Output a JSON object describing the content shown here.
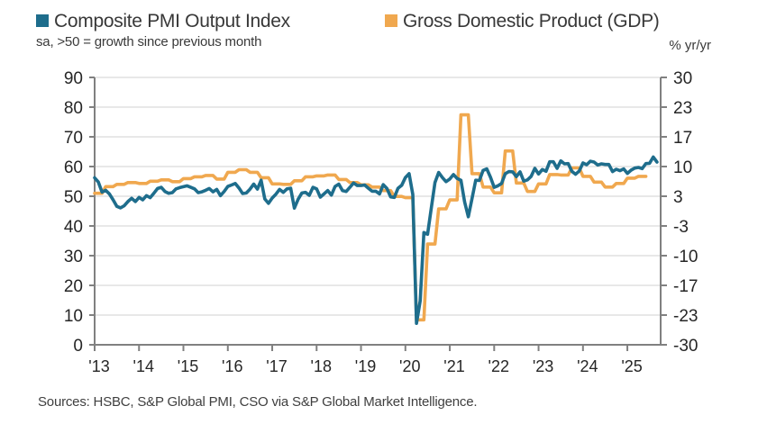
{
  "header": {
    "legend": [
      {
        "label": "Composite PMI Output Index",
        "color": "#1E6D8C"
      },
      {
        "label": "Gross Domestic Product (GDP)",
        "color": "#F0A84F"
      }
    ],
    "subtitle_left": "sa, >50 = growth since previous month",
    "subtitle_right": "% yr/yr"
  },
  "footer": {
    "source": "Sources: HSBC, S&P Global PMI, CSO via S&P Global Market Intelligence."
  },
  "chart_data": {
    "type": "line",
    "title": "",
    "grid": true,
    "legend_position": "top",
    "colors": {
      "grid": "#d9d9d9",
      "axis": "#808080",
      "text": "#262626"
    },
    "x_axis": {
      "start": "2013-01",
      "months_total": 153,
      "tick_months": [
        0,
        12,
        24,
        36,
        48,
        60,
        72,
        84,
        96,
        108,
        120,
        132,
        144
      ],
      "tick_labels": [
        "'13",
        "'14",
        "'15",
        "'16",
        "'17",
        "'18",
        "'19",
        "'20",
        "'21",
        "'22",
        "'23",
        "'24",
        "'25"
      ]
    },
    "left_axis": {
      "label": "Composite PMI Output Index",
      "range": [
        0,
        90
      ],
      "ticks": [
        90,
        80,
        70,
        60,
        50,
        40,
        30,
        20,
        10,
        0
      ]
    },
    "right_axis": {
      "label": "% yr/yr",
      "range": [
        -30,
        30
      ],
      "ticks": [
        "30",
        "23",
        "17",
        "10",
        "3",
        "-3",
        "-10",
        "-17",
        "-23",
        "-30"
      ]
    },
    "series": [
      {
        "name": "Composite PMI Output Index",
        "axis": "left",
        "frequency": "monthly",
        "start": "2013-01",
        "color": "#1E6D8C",
        "values": [
          56.2,
          54.8,
          51.4,
          52.0,
          50.8,
          48.8,
          46.6,
          46.1,
          46.8,
          48.2,
          49.3,
          48.2,
          49.6,
          48.8,
          50.2,
          49.5,
          51.0,
          52.6,
          53.0,
          51.6,
          51.0,
          51.2,
          52.5,
          52.9,
          53.2,
          53.5,
          53.0,
          52.5,
          51.2,
          51.5,
          52.0,
          52.6,
          51.5,
          52.3,
          50.2,
          51.6,
          53.3,
          53.8,
          54.3,
          52.8,
          50.9,
          51.1,
          52.4,
          54.1,
          52.4,
          55.4,
          49.1,
          47.6,
          49.4,
          50.7,
          52.3,
          51.3,
          52.5,
          52.7,
          46.0,
          49.0,
          51.1,
          51.3,
          50.3,
          53.0,
          52.5,
          49.7,
          50.8,
          51.9,
          50.4,
          53.3,
          54.1,
          51.9,
          51.6,
          53.0,
          54.5,
          53.6,
          53.6,
          53.8,
          52.7,
          51.7,
          51.7,
          50.8,
          53.9,
          52.6,
          49.8,
          49.6,
          52.7,
          53.7,
          56.3,
          57.6,
          50.6,
          7.2,
          14.8,
          37.8,
          37.2,
          46.0,
          54.6,
          58.0,
          56.3,
          54.9,
          55.8,
          57.3,
          56.0,
          55.4,
          48.1,
          43.1,
          49.2,
          55.4,
          55.3,
          58.7,
          59.2,
          56.4,
          53.0,
          53.5,
          54.3,
          57.6,
          58.3,
          58.2,
          56.6,
          58.2,
          55.1,
          55.5,
          56.7,
          59.4,
          57.5,
          59.0,
          58.4,
          61.6,
          61.6,
          59.4,
          61.9,
          60.9,
          61.0,
          58.4,
          57.4,
          58.5,
          61.2,
          60.6,
          61.8,
          61.5,
          60.5,
          60.9,
          60.7,
          60.7,
          58.3,
          59.1,
          58.6,
          59.2,
          57.7,
          58.8,
          59.5,
          59.7,
          59.3,
          61.0,
          61.1,
          63.2,
          61.5
        ]
      },
      {
        "name": "Gross Domestic Product (GDP)",
        "axis": "right",
        "frequency": "quarterly",
        "start": "2013-Q1",
        "style": "step",
        "color": "#F0A84F",
        "values": [
          4.0,
          5.5,
          6.0,
          6.4,
          6.2,
          6.7,
          7.0,
          6.6,
          7.3,
          7.7,
          8.0,
          7.2,
          8.7,
          9.3,
          8.7,
          7.5,
          6.1,
          6.0,
          6.8,
          7.7,
          7.9,
          8.1,
          7.1,
          6.4,
          5.9,
          5.4,
          4.6,
          3.3,
          3.0,
          -24.4,
          -7.4,
          0.5,
          2.5,
          21.6,
          8.4,
          5.4,
          4.1,
          13.5,
          6.3,
          4.4,
          6.1,
          8.2,
          8.1,
          9.7,
          7.8,
          6.5,
          5.4,
          6.2,
          7.4,
          7.8
        ]
      }
    ]
  }
}
